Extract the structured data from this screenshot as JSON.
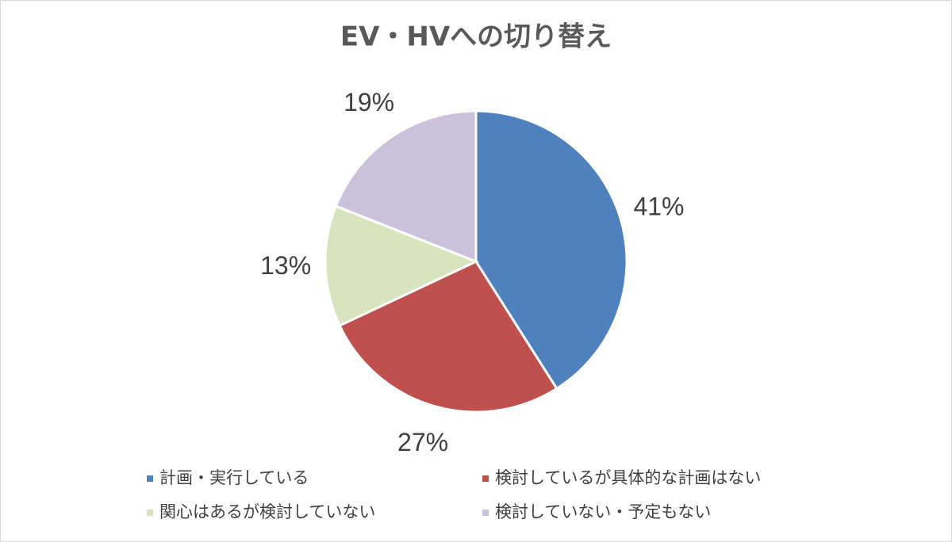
{
  "chart_data": {
    "type": "pie",
    "title": "EV・HVへの切り替え",
    "categories": [
      "計画・実行している",
      "検討しているが具体的な計画はない",
      "関心はあるが検討していない",
      "検討していない・予定もない"
    ],
    "values": [
      41,
      27,
      13,
      19
    ],
    "value_labels": [
      "41%",
      "27%",
      "13%",
      "19%"
    ],
    "colors": [
      "#4f81bd",
      "#c0504d",
      "#d7e4bd",
      "#ccc1da"
    ],
    "legend": "bottom"
  }
}
